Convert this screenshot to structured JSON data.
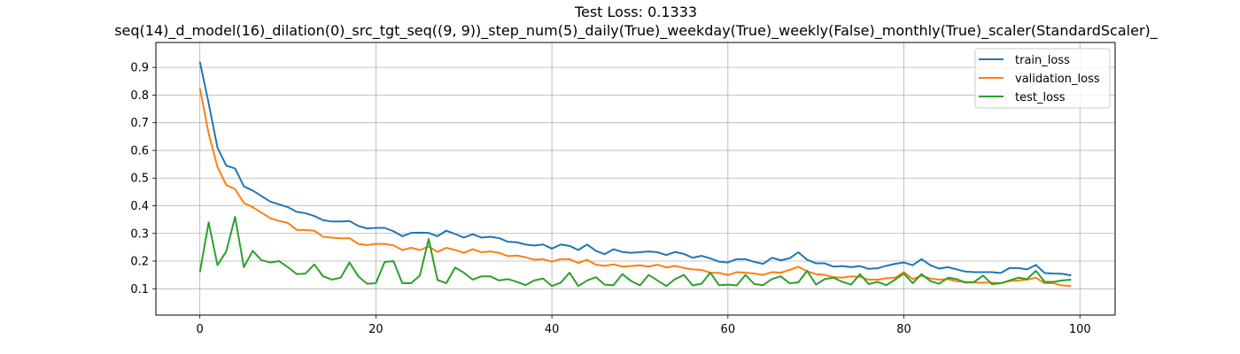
{
  "chart_data": {
    "type": "line",
    "title": "Test Loss: 0.1333",
    "subtitle": "seq(14)_d_model(16)_dilation(0)_src_tgt_seq((9, 9))_step_num(5)_daily(True)_weekday(True)_weekly(False)_monthly(True)_scaler(StandardScaler)_",
    "xlabel": "",
    "ylabel": "",
    "xlim": [
      -5,
      104
    ],
    "ylim": [
      0.005,
      0.99
    ],
    "x_ticks": [
      0,
      20,
      40,
      60,
      80,
      100
    ],
    "y_ticks": [
      0.1,
      0.2,
      0.3,
      0.4,
      0.5,
      0.6,
      0.7,
      0.8,
      0.9
    ],
    "x_tick_labels": [
      "0",
      "20",
      "40",
      "60",
      "80",
      "100"
    ],
    "y_tick_labels": [
      "0.1",
      "0.2",
      "0.3",
      "0.4",
      "0.5",
      "0.6",
      "0.7",
      "0.8",
      "0.9"
    ],
    "grid": true,
    "legend_position": "top-right",
    "x": [
      0,
      1,
      2,
      3,
      4,
      5,
      6,
      7,
      8,
      9,
      10,
      11,
      12,
      13,
      14,
      15,
      16,
      17,
      18,
      19,
      20,
      21,
      22,
      23,
      24,
      25,
      26,
      27,
      28,
      29,
      30,
      31,
      32,
      33,
      34,
      35,
      36,
      37,
      38,
      39,
      40,
      41,
      42,
      43,
      44,
      45,
      46,
      47,
      48,
      49,
      50,
      51,
      52,
      53,
      54,
      55,
      56,
      57,
      58,
      59,
      60,
      61,
      62,
      63,
      64,
      65,
      66,
      67,
      68,
      69,
      70,
      71,
      72,
      73,
      74,
      75,
      76,
      77,
      78,
      79,
      80,
      81,
      82,
      83,
      84,
      85,
      86,
      87,
      88,
      89,
      90,
      91,
      92,
      93,
      94,
      95,
      96,
      97,
      98,
      99
    ],
    "series": [
      {
        "name": "train_loss",
        "color": "#1f77b4",
        "values": [
          0.92,
          0.77,
          0.61,
          0.545,
          0.535,
          0.47,
          0.455,
          0.435,
          0.415,
          0.405,
          0.395,
          0.378,
          0.373,
          0.363,
          0.348,
          0.343,
          0.343,
          0.345,
          0.327,
          0.318,
          0.32,
          0.32,
          0.308,
          0.29,
          0.302,
          0.303,
          0.302,
          0.29,
          0.31,
          0.298,
          0.285,
          0.297,
          0.285,
          0.288,
          0.283,
          0.27,
          0.268,
          0.26,
          0.256,
          0.26,
          0.245,
          0.26,
          0.255,
          0.24,
          0.26,
          0.237,
          0.225,
          0.243,
          0.233,
          0.23,
          0.232,
          0.235,
          0.232,
          0.222,
          0.233,
          0.226,
          0.212,
          0.219,
          0.21,
          0.198,
          0.195,
          0.207,
          0.207,
          0.197,
          0.19,
          0.212,
          0.203,
          0.21,
          0.232,
          0.205,
          0.192,
          0.192,
          0.18,
          0.182,
          0.178,
          0.182,
          0.172,
          0.174,
          0.183,
          0.19,
          0.195,
          0.185,
          0.207,
          0.185,
          0.173,
          0.178,
          0.17,
          0.162,
          0.16,
          0.16,
          0.16,
          0.157,
          0.175,
          0.175,
          0.17,
          0.186,
          0.157,
          0.155,
          0.154,
          0.148
        ]
      },
      {
        "name": "validation_loss",
        "color": "#ff7f0e",
        "values": [
          0.825,
          0.66,
          0.54,
          0.475,
          0.46,
          0.41,
          0.395,
          0.375,
          0.355,
          0.345,
          0.338,
          0.313,
          0.312,
          0.31,
          0.288,
          0.285,
          0.282,
          0.283,
          0.262,
          0.258,
          0.262,
          0.262,
          0.257,
          0.24,
          0.248,
          0.24,
          0.253,
          0.233,
          0.248,
          0.24,
          0.23,
          0.243,
          0.232,
          0.235,
          0.23,
          0.218,
          0.22,
          0.214,
          0.205,
          0.207,
          0.198,
          0.207,
          0.207,
          0.193,
          0.205,
          0.187,
          0.183,
          0.188,
          0.18,
          0.182,
          0.185,
          0.18,
          0.187,
          0.177,
          0.183,
          0.175,
          0.17,
          0.168,
          0.158,
          0.157,
          0.15,
          0.16,
          0.158,
          0.155,
          0.15,
          0.16,
          0.158,
          0.168,
          0.18,
          0.163,
          0.153,
          0.15,
          0.142,
          0.14,
          0.145,
          0.143,
          0.133,
          0.133,
          0.138,
          0.14,
          0.16,
          0.135,
          0.147,
          0.137,
          0.133,
          0.135,
          0.127,
          0.125,
          0.122,
          0.122,
          0.122,
          0.12,
          0.128,
          0.13,
          0.133,
          0.14,
          0.12,
          0.12,
          0.112,
          0.11
        ]
      },
      {
        "name": "test_loss",
        "color": "#2ca02c",
        "values": [
          0.16,
          0.34,
          0.185,
          0.235,
          0.36,
          0.178,
          0.237,
          0.203,
          0.195,
          0.2,
          0.178,
          0.153,
          0.155,
          0.188,
          0.145,
          0.133,
          0.14,
          0.195,
          0.145,
          0.118,
          0.12,
          0.197,
          0.2,
          0.12,
          0.12,
          0.148,
          0.28,
          0.132,
          0.12,
          0.177,
          0.158,
          0.133,
          0.145,
          0.145,
          0.13,
          0.135,
          0.125,
          0.113,
          0.13,
          0.137,
          0.11,
          0.122,
          0.158,
          0.11,
          0.13,
          0.142,
          0.115,
          0.113,
          0.153,
          0.128,
          0.112,
          0.15,
          0.13,
          0.11,
          0.135,
          0.15,
          0.112,
          0.118,
          0.158,
          0.113,
          0.115,
          0.112,
          0.15,
          0.117,
          0.113,
          0.135,
          0.145,
          0.12,
          0.123,
          0.165,
          0.115,
          0.135,
          0.14,
          0.125,
          0.115,
          0.153,
          0.117,
          0.125,
          0.113,
          0.133,
          0.155,
          0.12,
          0.153,
          0.128,
          0.118,
          0.14,
          0.135,
          0.122,
          0.125,
          0.148,
          0.117,
          0.12,
          0.13,
          0.14,
          0.135,
          0.165,
          0.125,
          0.125,
          0.13,
          0.133
        ]
      }
    ]
  }
}
